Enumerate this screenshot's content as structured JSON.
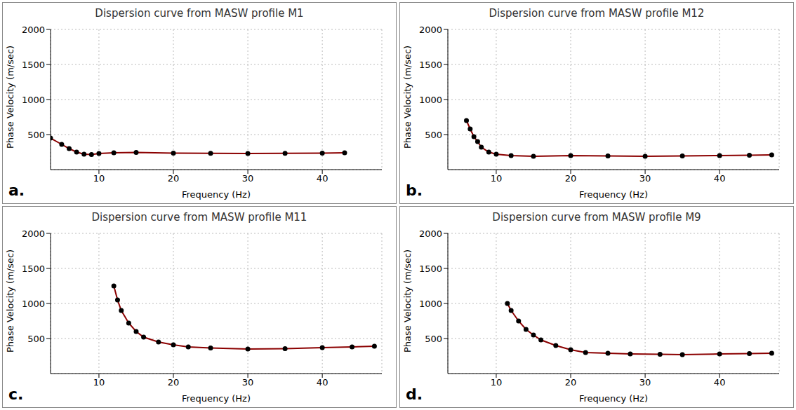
{
  "chart_data": [
    {
      "type": "line",
      "title": "Dispersion curve from MASW profile M1",
      "panel": "a.",
      "x_label": "Frequency (Hz)",
      "y_label": "Phase Velocity (m/sec)",
      "x": [
        3.5,
        5,
        6,
        7,
        8,
        9,
        10,
        12,
        15,
        20,
        25,
        30,
        35,
        40,
        43
      ],
      "values": [
        450,
        360,
        300,
        250,
        220,
        215,
        230,
        240,
        245,
        235,
        232,
        230,
        232,
        235,
        240
      ],
      "color": "#8b0000",
      "marker": "circle",
      "line_style": "solid",
      "xlim": [
        3.5,
        48
      ],
      "ylim": [
        0,
        2000
      ],
      "xticks": [
        10,
        20,
        30,
        40
      ],
      "yticks": [
        500,
        1000,
        1500,
        2000
      ],
      "grid": true
    },
    {
      "type": "line",
      "title": "Dispersion curve from MASW profile M12",
      "panel": "b.",
      "x_label": "Frequency (Hz)",
      "y_label": "Phase Velocity (m/sec)",
      "x": [
        6,
        6.5,
        7,
        7.5,
        8,
        9,
        10,
        12,
        15,
        20,
        25,
        30,
        35,
        40,
        44,
        47
      ],
      "values": [
        700,
        580,
        470,
        400,
        320,
        250,
        220,
        200,
        190,
        200,
        195,
        190,
        195,
        200,
        205,
        210
      ],
      "color": "#8b0000",
      "marker": "circle",
      "line_style": "solid",
      "xlim": [
        3.5,
        48
      ],
      "ylim": [
        0,
        2000
      ],
      "xticks": [
        10,
        20,
        30,
        40
      ],
      "yticks": [
        500,
        1000,
        1500,
        2000
      ],
      "grid": true
    },
    {
      "type": "line",
      "title": "Dispersion curve from MASW profile M11",
      "panel": "c.",
      "x_label": "Frequency (Hz)",
      "y_label": "Phase Velocity (m/sec)",
      "x": [
        12,
        12.5,
        13,
        14,
        15,
        16,
        18,
        20,
        22,
        25,
        30,
        35,
        40,
        44,
        47
      ],
      "values": [
        1250,
        1050,
        900,
        720,
        600,
        520,
        450,
        410,
        380,
        365,
        350,
        355,
        370,
        380,
        390
      ],
      "color": "#8b0000",
      "marker": "circle",
      "line_style": "solid",
      "xlim": [
        3.5,
        48
      ],
      "ylim": [
        0,
        2000
      ],
      "xticks": [
        10,
        20,
        30,
        40
      ],
      "yticks": [
        500,
        1000,
        1500,
        2000
      ],
      "grid": true
    },
    {
      "type": "line",
      "title": "Dispersion curve from MASW profile M9",
      "panel": "d.",
      "x_label": "Frequency (Hz)",
      "y_label": "Phase Velocity (m/sec)",
      "x": [
        11.5,
        12,
        13,
        14,
        15,
        16,
        18,
        20,
        22,
        25,
        28,
        32,
        35,
        40,
        44,
        47
      ],
      "values": [
        1000,
        900,
        750,
        630,
        550,
        480,
        400,
        340,
        300,
        290,
        280,
        275,
        270,
        280,
        285,
        290
      ],
      "color": "#8b0000",
      "marker": "circle",
      "line_style": "solid",
      "xlim": [
        3.5,
        48
      ],
      "ylim": [
        0,
        2000
      ],
      "xticks": [
        10,
        20,
        30,
        40
      ],
      "yticks": [
        500,
        1000,
        1500,
        2000
      ],
      "grid": true
    }
  ]
}
